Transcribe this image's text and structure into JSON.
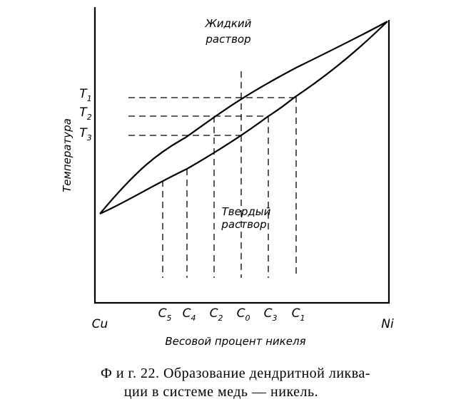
{
  "diagram": {
    "liquid_label": [
      "Жидкий",
      "раствор"
    ],
    "solid_label": [
      "Твердый",
      "раствор"
    ],
    "y_axis_label": "Температура",
    "x_axis_label": "Весовой процент никеля",
    "left_end": "Cu",
    "right_end": "Ni",
    "temperatures": [
      {
        "letter": "T",
        "index": "1"
      },
      {
        "letter": "T",
        "index": "2"
      },
      {
        "letter": "T",
        "index": "3"
      }
    ],
    "compositions": [
      {
        "letter": "C",
        "index": "5"
      },
      {
        "letter": "C",
        "index": "4"
      },
      {
        "letter": "C",
        "index": "2"
      },
      {
        "letter": "C",
        "index": "0"
      },
      {
        "letter": "C",
        "index": "3"
      },
      {
        "letter": "C",
        "index": "1"
      }
    ]
  },
  "caption": [
    "Ф и г. 22. Образование дендритной ликва-",
    "ции в системе медь — никель."
  ]
}
